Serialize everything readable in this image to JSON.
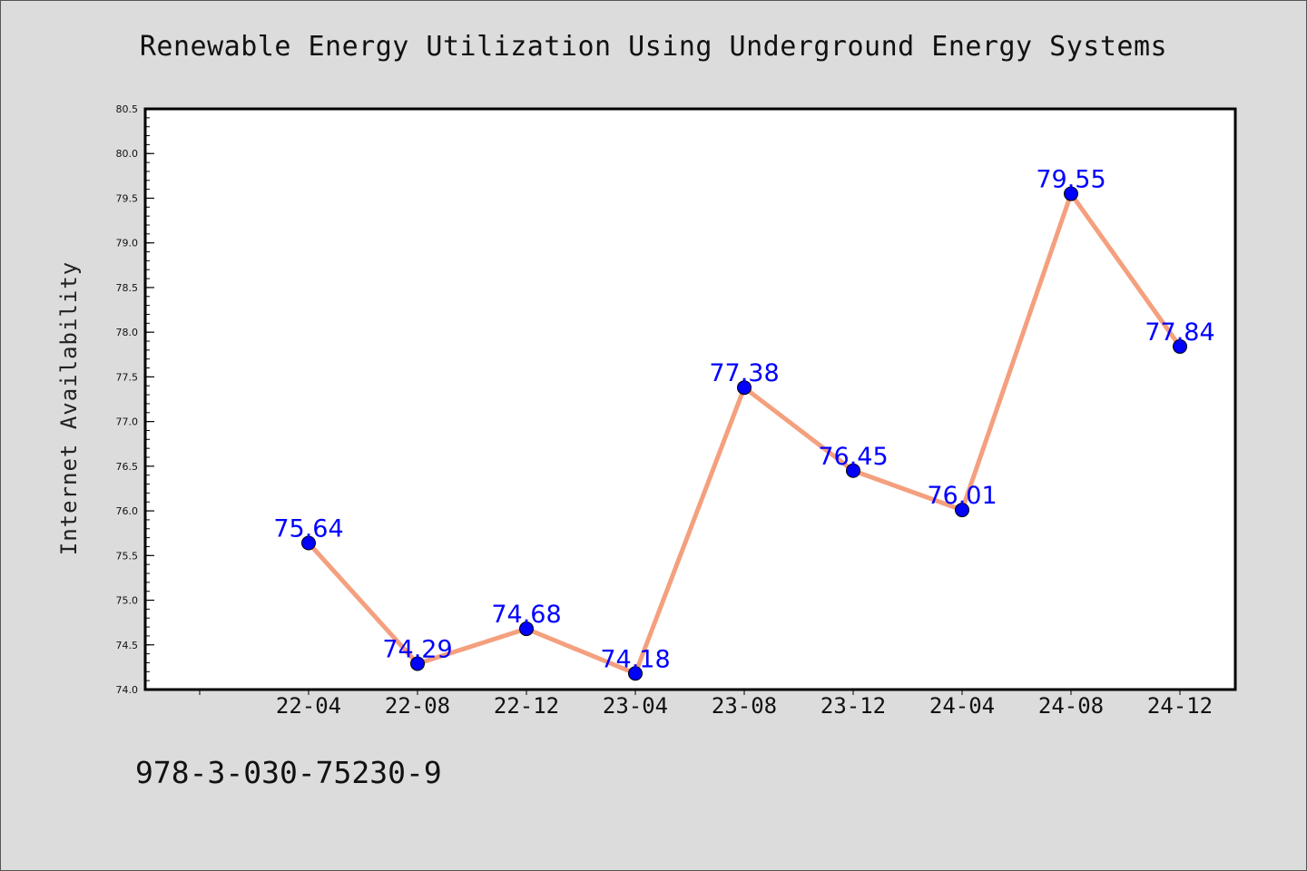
{
  "chart_data": {
    "type": "line",
    "title": "Renewable Energy Utilization Using Underground Energy Systems",
    "xlabel": "",
    "ylabel": "Internet Availability",
    "categories": [
      "22-04",
      "22-08",
      "22-12",
      "23-04",
      "23-08",
      "23-12",
      "24-04",
      "24-08",
      "24-12"
    ],
    "series": [
      {
        "values": [
          75.64,
          74.29,
          74.68,
          74.18,
          77.38,
          76.45,
          76.01,
          79.55,
          77.84
        ],
        "data_labels": [
          "75.64",
          "74.29",
          "74.68",
          "74.18",
          "77.38",
          "76.45",
          "76.01",
          "79.55",
          "77.84"
        ],
        "line_color": "#f4a07e",
        "marker_color": "#0000ff",
        "label_color": "#0000ff"
      }
    ],
    "ylim": [
      74.0,
      80.5
    ],
    "yticks": [
      "74.0",
      "74.5",
      "75.0",
      "75.5",
      "76.0",
      "76.5",
      "77.0",
      "77.5",
      "78.0",
      "78.5",
      "79.0",
      "79.5",
      "80.0",
      "80.5"
    ],
    "grid": false,
    "legend": "none"
  },
  "footer": {
    "code": "978-3-030-75230-9"
  },
  "colors": {
    "background": "#dcdcdc",
    "plot_background": "#ffffff",
    "axis": "#000000"
  }
}
